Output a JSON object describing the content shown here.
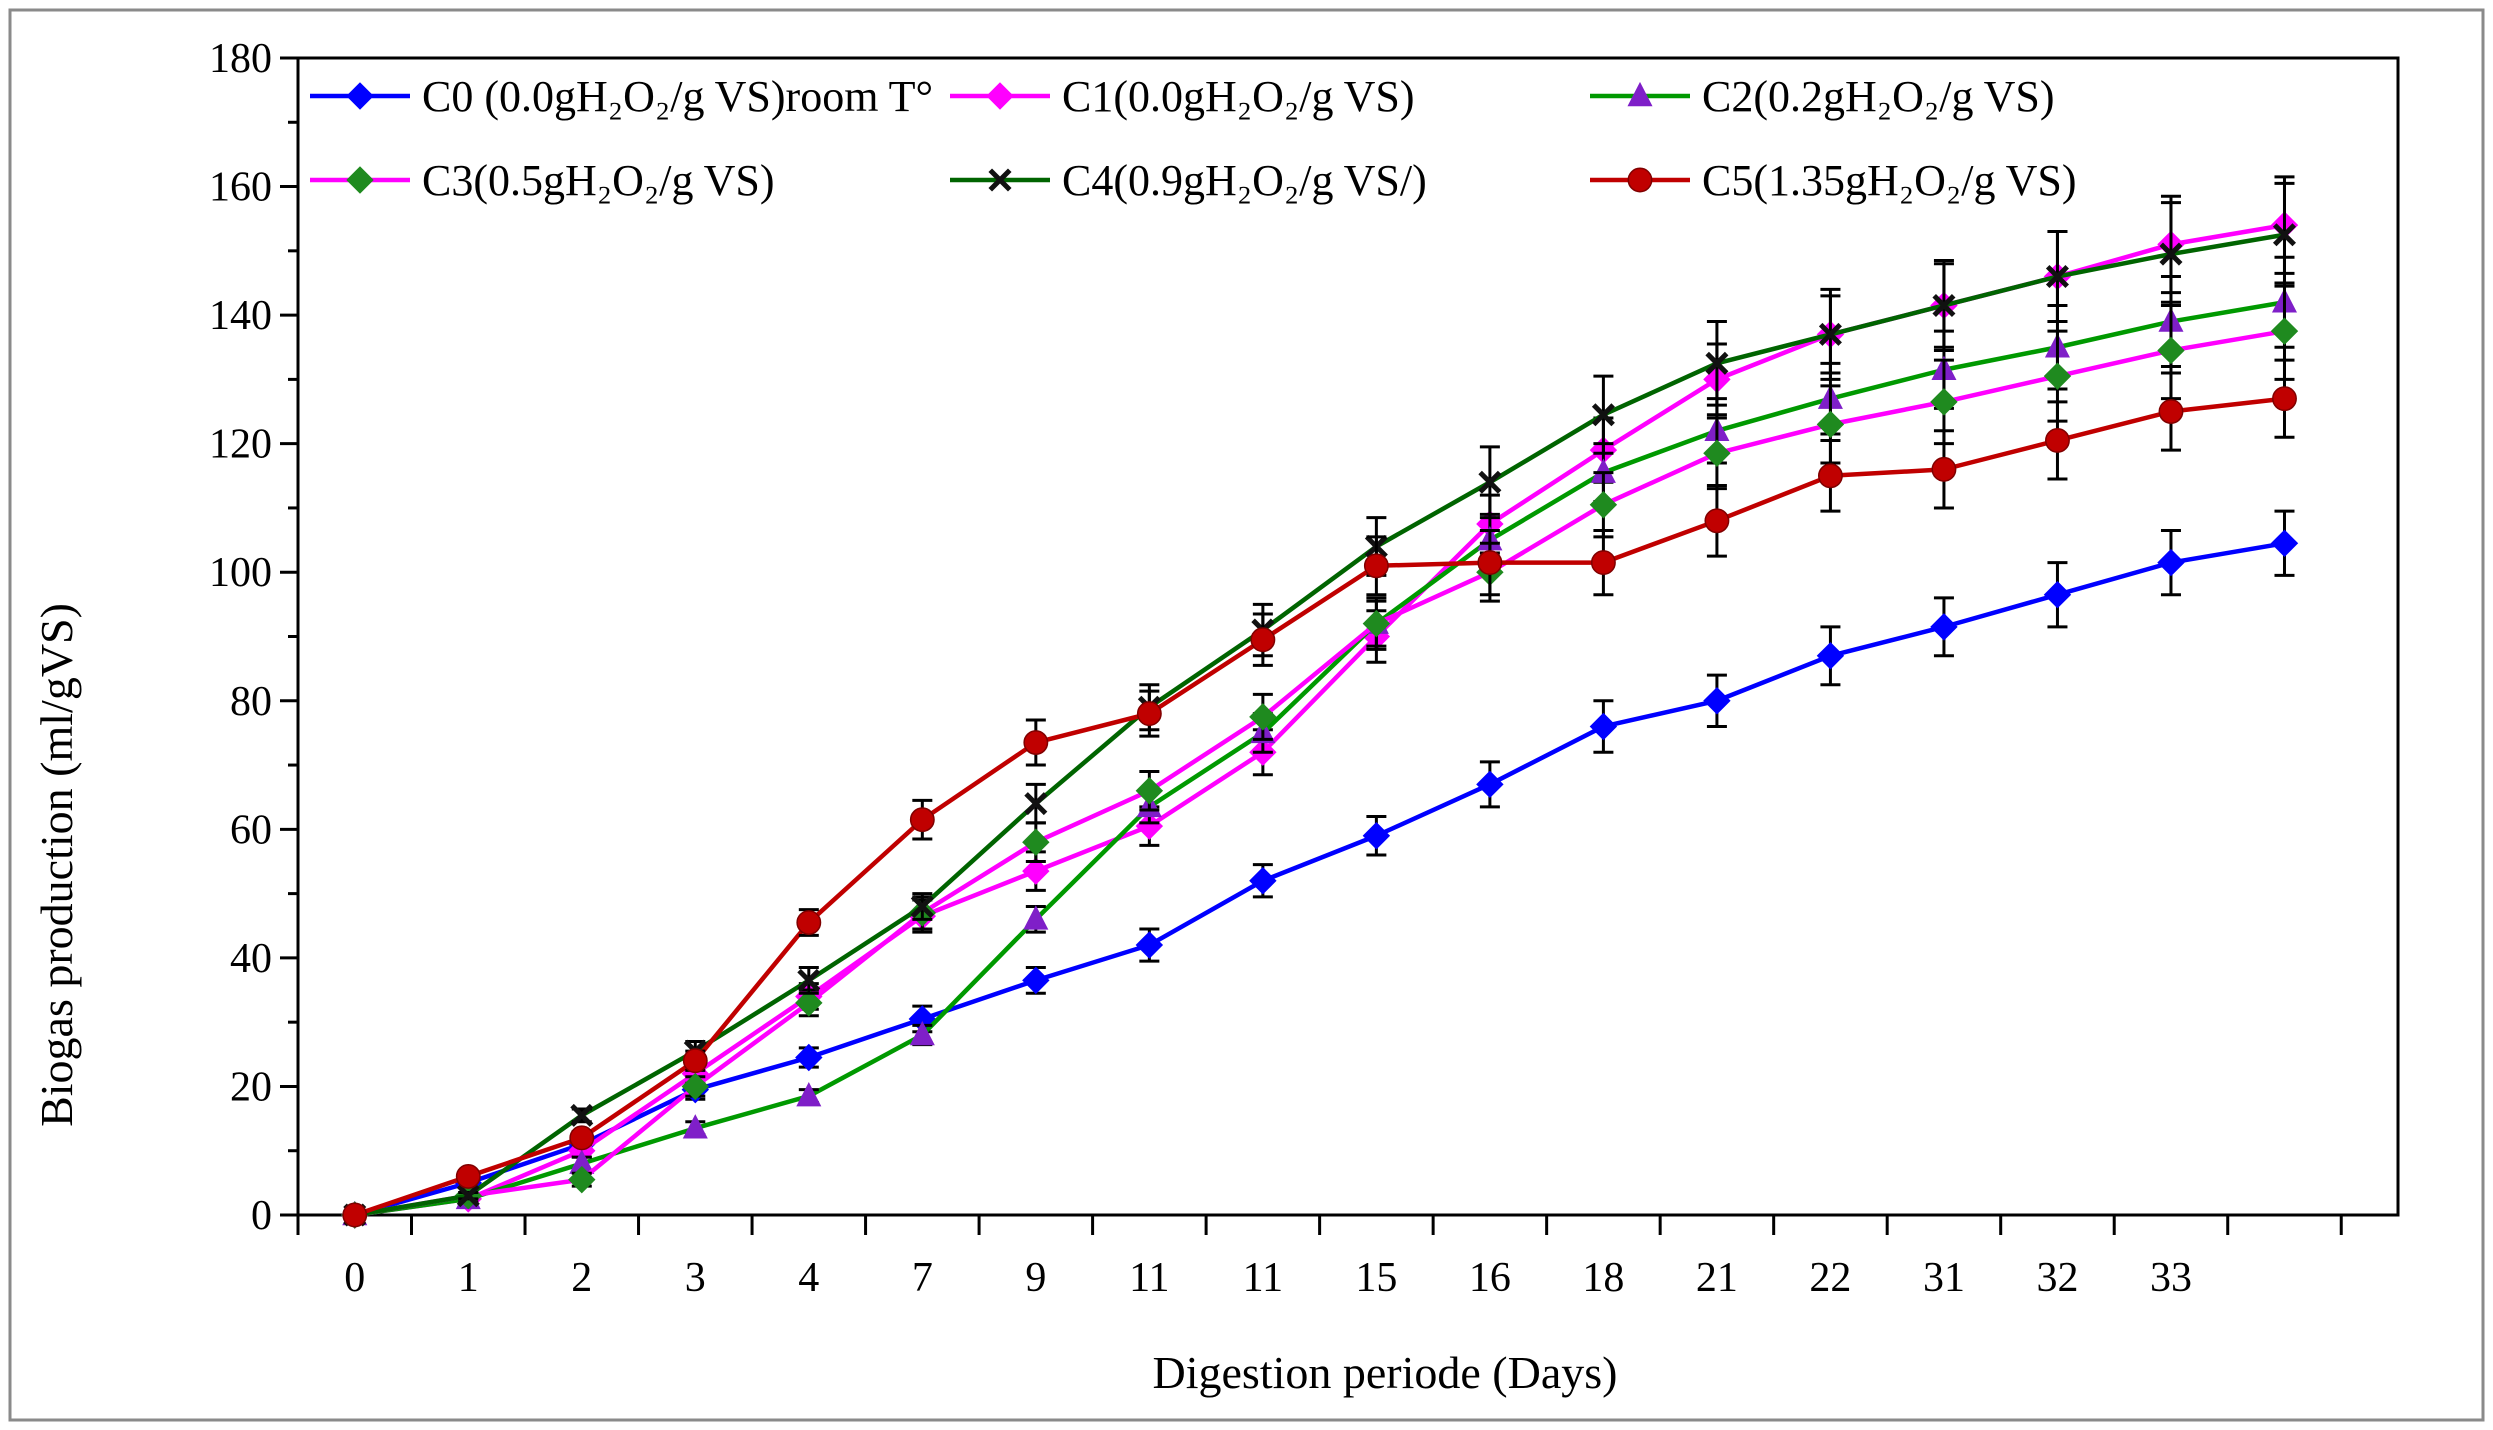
{
  "chart_data": {
    "type": "line",
    "title": "",
    "xlabel": "Digestion periode (Days)",
    "ylabel": "Biogas production (ml/gVS)",
    "ylim": [
      0,
      180
    ],
    "yticks": [
      "0",
      "20",
      "40",
      "60",
      "80",
      "100",
      "120",
      "140",
      "160",
      "180"
    ],
    "categories": [
      "0",
      "1",
      "2",
      "3",
      "4",
      "7",
      "9",
      "11",
      "11",
      "15",
      "16",
      "18",
      "21",
      "22",
      "31",
      "32",
      "33",
      ""
    ],
    "grid": false,
    "legend_position": "top",
    "series": [
      {
        "name": "C0 (0.0gH₂O₂/g VS)room T°",
        "color": "#0000ff",
        "marker": "diamond",
        "values": [
          0,
          5,
          11,
          19.5,
          24.5,
          30.5,
          36.5,
          42,
          52,
          59,
          67,
          76,
          80,
          87,
          91.5,
          96.5,
          101.5,
          104.5
        ],
        "errors": [
          0,
          0.5,
          1,
          1.5,
          1.5,
          2,
          2,
          2.5,
          2.5,
          3,
          3.5,
          4,
          4,
          4.5,
          4.5,
          5,
          5,
          5
        ]
      },
      {
        "name": "C1(0.0gH₂O₂/g VS)",
        "color": "#ff00ff",
        "marker": "diamond",
        "values": [
          0,
          2.5,
          10,
          22,
          34,
          46.5,
          53.5,
          60.5,
          72,
          90,
          107.5,
          119,
          130,
          137,
          141.5,
          146,
          151,
          154
        ],
        "errors": [
          0,
          0.5,
          1,
          1.5,
          2,
          2.5,
          3,
          3,
          3.5,
          4,
          4.5,
          5,
          5.5,
          6,
          6.5,
          7,
          7.5,
          7.5
        ]
      },
      {
        "name": "C2(0.2gH₂O₂/g VS)",
        "color": "#009900",
        "marker": "triangle",
        "marker_color": "#7f1fc8",
        "values": [
          0,
          2.5,
          8,
          13.5,
          18.5,
          28,
          46,
          63.5,
          75,
          92,
          105,
          115.5,
          122,
          127,
          131.5,
          135,
          139,
          142
        ],
        "errors": [
          0,
          0.5,
          1,
          1,
          1,
          1.5,
          2,
          2.5,
          3,
          3.5,
          4,
          4.5,
          5,
          5.5,
          6,
          6.5,
          7,
          7
        ]
      },
      {
        "name": "C3(0.5gH₂O₂/g VS)",
        "color": "#ff00ff",
        "marker": "diamond",
        "marker_color": "#1f8a1f",
        "values": [
          0,
          3,
          5.5,
          20,
          33,
          47,
          58,
          66,
          77.5,
          92,
          100,
          110.5,
          118.5,
          123,
          126.5,
          130.5,
          134.5,
          137.5
        ],
        "errors": [
          0,
          0.5,
          1,
          1.5,
          2,
          2.5,
          3,
          3,
          3.5,
          4,
          4.5,
          5,
          5.5,
          6,
          6.5,
          7,
          7.5,
          7.5
        ]
      },
      {
        "name": "C4(0.9gH₂O₂/g VS/)",
        "color": "#006400",
        "marker": "x",
        "values": [
          0,
          3,
          15.5,
          25.5,
          36.5,
          48,
          64,
          79,
          91,
          104,
          114,
          124.5,
          132.5,
          137,
          141.5,
          146,
          149.5,
          152.5
        ],
        "errors": [
          0,
          0.5,
          1,
          1.5,
          2,
          2,
          3,
          3.5,
          4,
          4.5,
          5.5,
          6,
          6.5,
          7,
          7,
          7,
          8,
          8
        ]
      },
      {
        "name": "C5(1.35gH₂O₂/g VS)",
        "color": "#c00000",
        "marker": "circle",
        "values": [
          0,
          6,
          12,
          24,
          45.5,
          61.5,
          73.5,
          78,
          89.5,
          101,
          101.5,
          101.5,
          108,
          115,
          116,
          120.5,
          125,
          127
        ],
        "errors": [
          0,
          0.5,
          1,
          1.5,
          2,
          3,
          3.5,
          3.5,
          4,
          4.5,
          5,
          5,
          5.5,
          5.5,
          6,
          6,
          6,
          6
        ]
      }
    ]
  }
}
